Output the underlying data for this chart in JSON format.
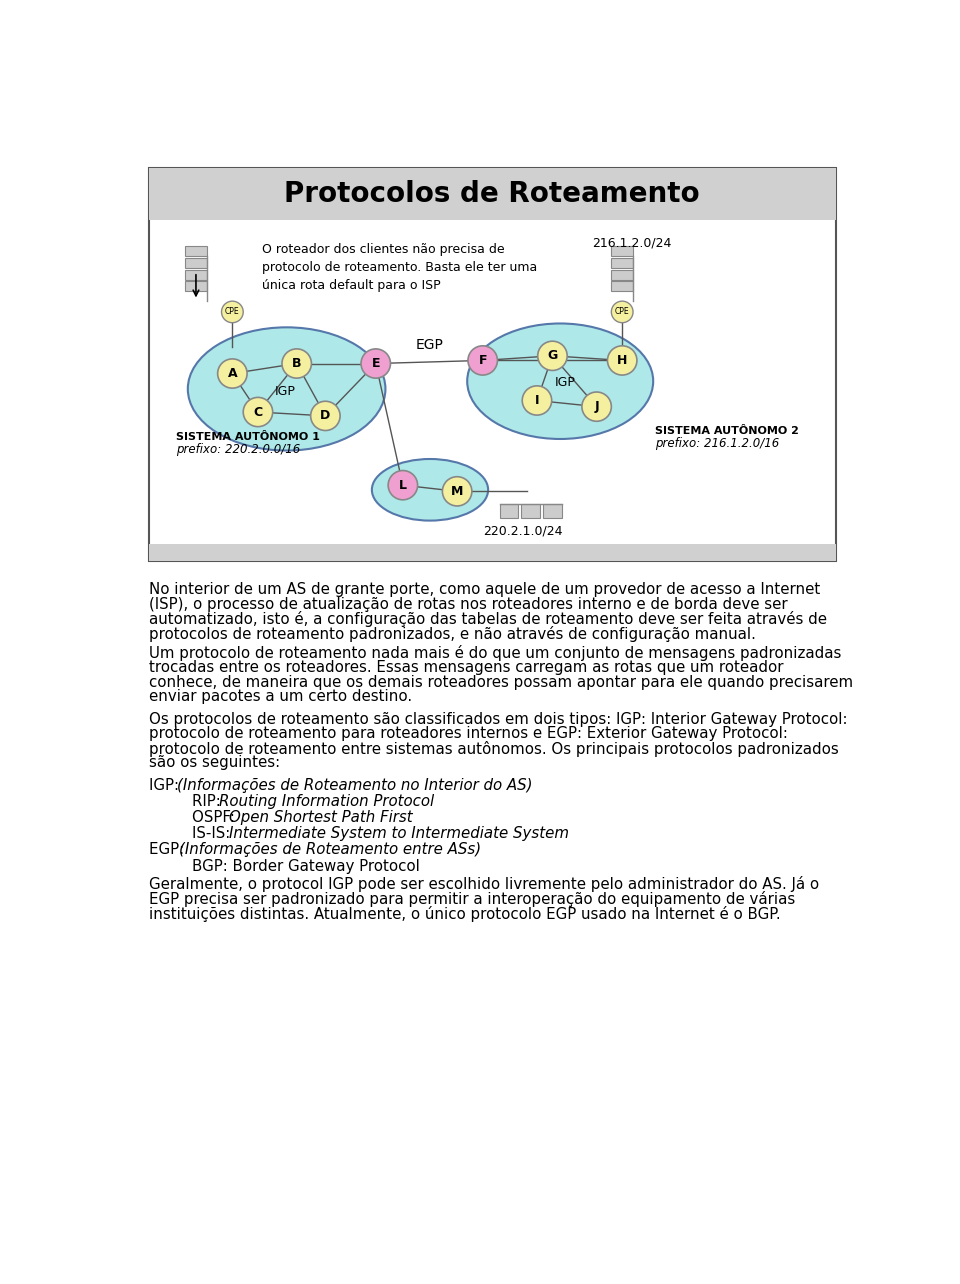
{
  "title": "Protocolos de Roteamento",
  "title_fontsize": 20,
  "as1_color": "#aee8e8",
  "as2_color": "#aee8e8",
  "as3_color": "#aee8e8",
  "node_fill_yellow": "#f5f0a0",
  "node_fill_pink": "#f0a0d0",
  "cpe_fill": "#f5f0a0",
  "annotation_text": "O roteador dos clientes não precisa de\nprotocolo de roteamento. Basta ele ter uma\núnica rota default para o ISP",
  "label_216": "216.1.2.0/24",
  "label_220": "220.2.1.0/24",
  "sa1_text1": "SISTEMA AUTÔNOMO 1",
  "sa1_text2": "prefixo: 220.2.0.0/16",
  "sa2_text1": "SISTEMA AUTÔNOMO 2",
  "sa2_text2": "prefixo: 216.1.2.0/16",
  "egp_label": "EGP",
  "igp_label": "IGP",
  "para1": "No interior de um AS de grante porte, como aquele de um provedor de acesso a Internet\n(ISP), o processo de atualização de rotas nos roteadores interno e de borda deve ser\nautomatizado, isto é, a configuração das tabelas de roteamento deve ser feita através de\nprotocolos de roteamento padronizados, e não através de configuração manual.",
  "para2": "Um protocolo de roteamento nada mais é do que um conjunto de mensagens padronizadas\ntrocadas entre os roteadores. Essas mensagens carregam as rotas que um roteador\nconhece, de maneira que os demais roteadores possam apontar para ele quando precisarem\nenviar pacotes a um certo destino.",
  "para3": "Os protocolos de roteamento são classificados em dois tipos: IGP: Interior Gateway Protocol:\nprotocolo de roteamento para roteadores internos e EGP: Exterior Gateway Protocol:\nprotocolo de roteamento entre sistemas autônomos. Os principais protocolos padronizados\nsão os seguintes:",
  "para4": "Geralmente, o protocol IGP pode ser escolhido livremente pelo administrador do AS. Já o\nEGP precisa ser padronizado para permitir a interoperação do equipamento de várias\ninstituições distintas. Atualmente, o único protocolo EGP usado na Internet é o BGP."
}
